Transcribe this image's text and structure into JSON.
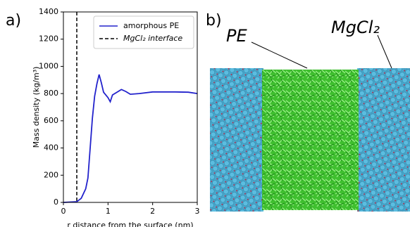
{
  "panel_labels": [
    "a)",
    "b)"
  ],
  "chart_data": {
    "type": "line",
    "x_label": "r distance from the surface (nm)",
    "y_label": "Mass density (kg/m³)",
    "x": [
      0,
      0.3,
      0.4,
      0.5,
      0.55,
      0.6,
      0.65,
      0.7,
      0.75,
      0.8,
      0.85,
      0.9,
      1.0,
      1.05,
      1.1,
      1.2,
      1.3,
      1.4,
      1.5,
      1.7,
      2.0,
      2.5,
      2.8,
      3.0
    ],
    "series": [
      {
        "name": "amorphous PE",
        "color": "#2222cc",
        "values": [
          0,
          5,
          30,
          100,
          180,
          400,
          620,
          780,
          870,
          940,
          880,
          810,
          770,
          740,
          790,
          810,
          830,
          815,
          795,
          800,
          812,
          812,
          810,
          800
        ]
      }
    ],
    "vlines": [
      {
        "name": "MgCl₂ interface",
        "x": 0.3,
        "color": "#000000"
      }
    ],
    "xlim": [
      0,
      3
    ],
    "ylim": [
      0,
      1400
    ],
    "xticks": [
      0,
      1,
      2,
      3
    ],
    "yticks": [
      0,
      200,
      400,
      600,
      800,
      1000,
      1200,
      1400
    ],
    "legend": "upper right"
  },
  "image_labels": [
    "PE",
    "MgCl₂"
  ]
}
